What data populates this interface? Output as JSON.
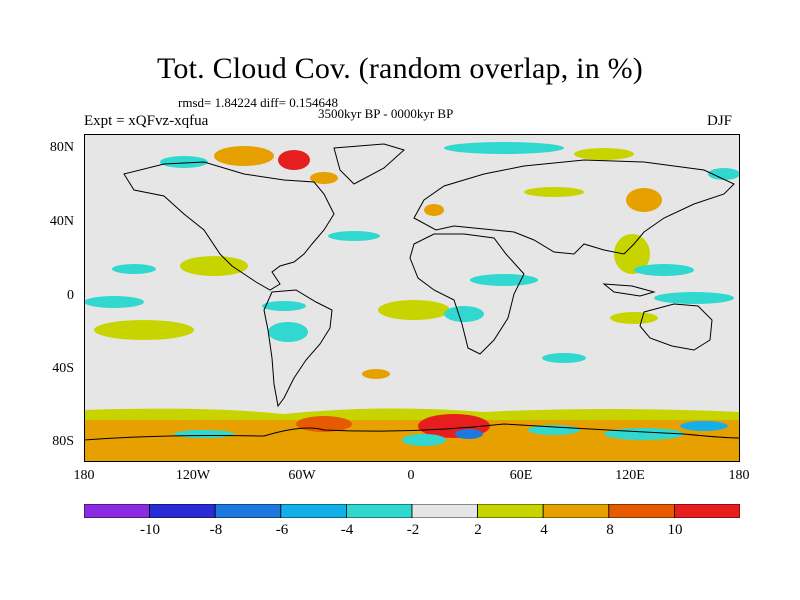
{
  "header": {
    "title": "Tot. Cloud Cov. (random overlap, in %)",
    "stats": "rmsd= 1.84224 diff= 0.154648",
    "period": "3500kyr BP - 0000kyr BP",
    "experiment": "Expt = xQFvz-xqfua",
    "season": "DJF"
  },
  "map": {
    "lat_ticks": [
      "80N",
      "40N",
      "0",
      "40S",
      "80S"
    ],
    "lon_ticks": [
      "180",
      "120W",
      "60W",
      "0",
      "60E",
      "120E",
      "180"
    ],
    "background_color": "#e6e6e6",
    "coastline_color": "#000000"
  },
  "colorbar": {
    "labels": [
      "-10",
      "-8",
      "-6",
      "-4",
      "-2",
      "2",
      "4",
      "8",
      "10"
    ],
    "colors": [
      "#8a2be2",
      "#2b2bd6",
      "#1e78e0",
      "#12b0e6",
      "#30d8d0",
      "#e6e6e6",
      "#c8d400",
      "#e6a000",
      "#e65a00",
      "#e61e1e"
    ]
  }
}
